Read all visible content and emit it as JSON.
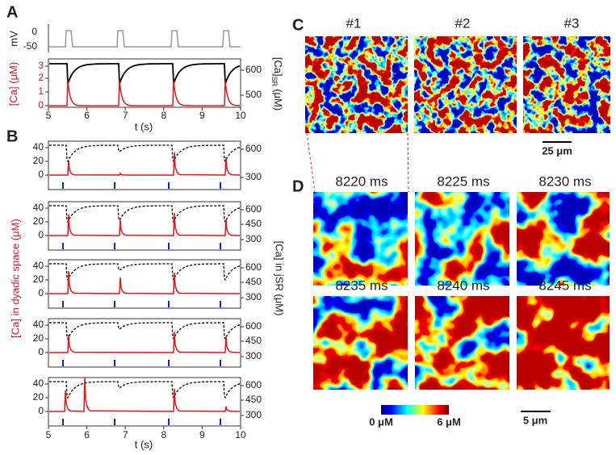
{
  "panel_labels": [
    "A",
    "B",
    "C",
    "D"
  ],
  "panel_a": {
    "voltage_axis_label": "mV",
    "voltage_ticks": [
      "0",
      "-50"
    ],
    "ca_axis_label": "[Ca]",
    "ca_axis_unit": "(μM)",
    "ca_ticks": [
      "3",
      "2",
      "1",
      "0"
    ],
    "sr_axis_label": "[Ca]",
    "sr_subscript": "SR",
    "sr_unit": "(μM)",
    "sr_ticks": [
      "600",
      "500"
    ],
    "x_ticks": [
      "5",
      "6",
      "7",
      "8",
      "9",
      "10"
    ],
    "x_label": "t (s)"
  },
  "panel_b": {
    "left_axis_label": "[Ca] in dyadic space (μM)",
    "right_axis_label": "[Ca] in jSR (μM)",
    "left_ticks": [
      "40",
      "20",
      "0"
    ],
    "right_ticks_first": [
      "600",
      "300"
    ],
    "right_ticks": [
      "600",
      "450",
      "300"
    ],
    "x_ticks": [
      "5",
      "6",
      "7",
      "8",
      "9",
      "10"
    ],
    "x_label": "t (s)"
  },
  "panel_c": {
    "titles": [
      "#1",
      "#2",
      "#3"
    ],
    "scale_bar": "25 μm"
  },
  "panel_d": {
    "times": [
      "8220 ms",
      "8225 ms",
      "8230 ms",
      "8235 ms",
      "8240 ms",
      "8245 ms"
    ],
    "colorbar_min": "0 μM",
    "colorbar_max": "6 μM",
    "scale_bar": "5 μm"
  }
}
